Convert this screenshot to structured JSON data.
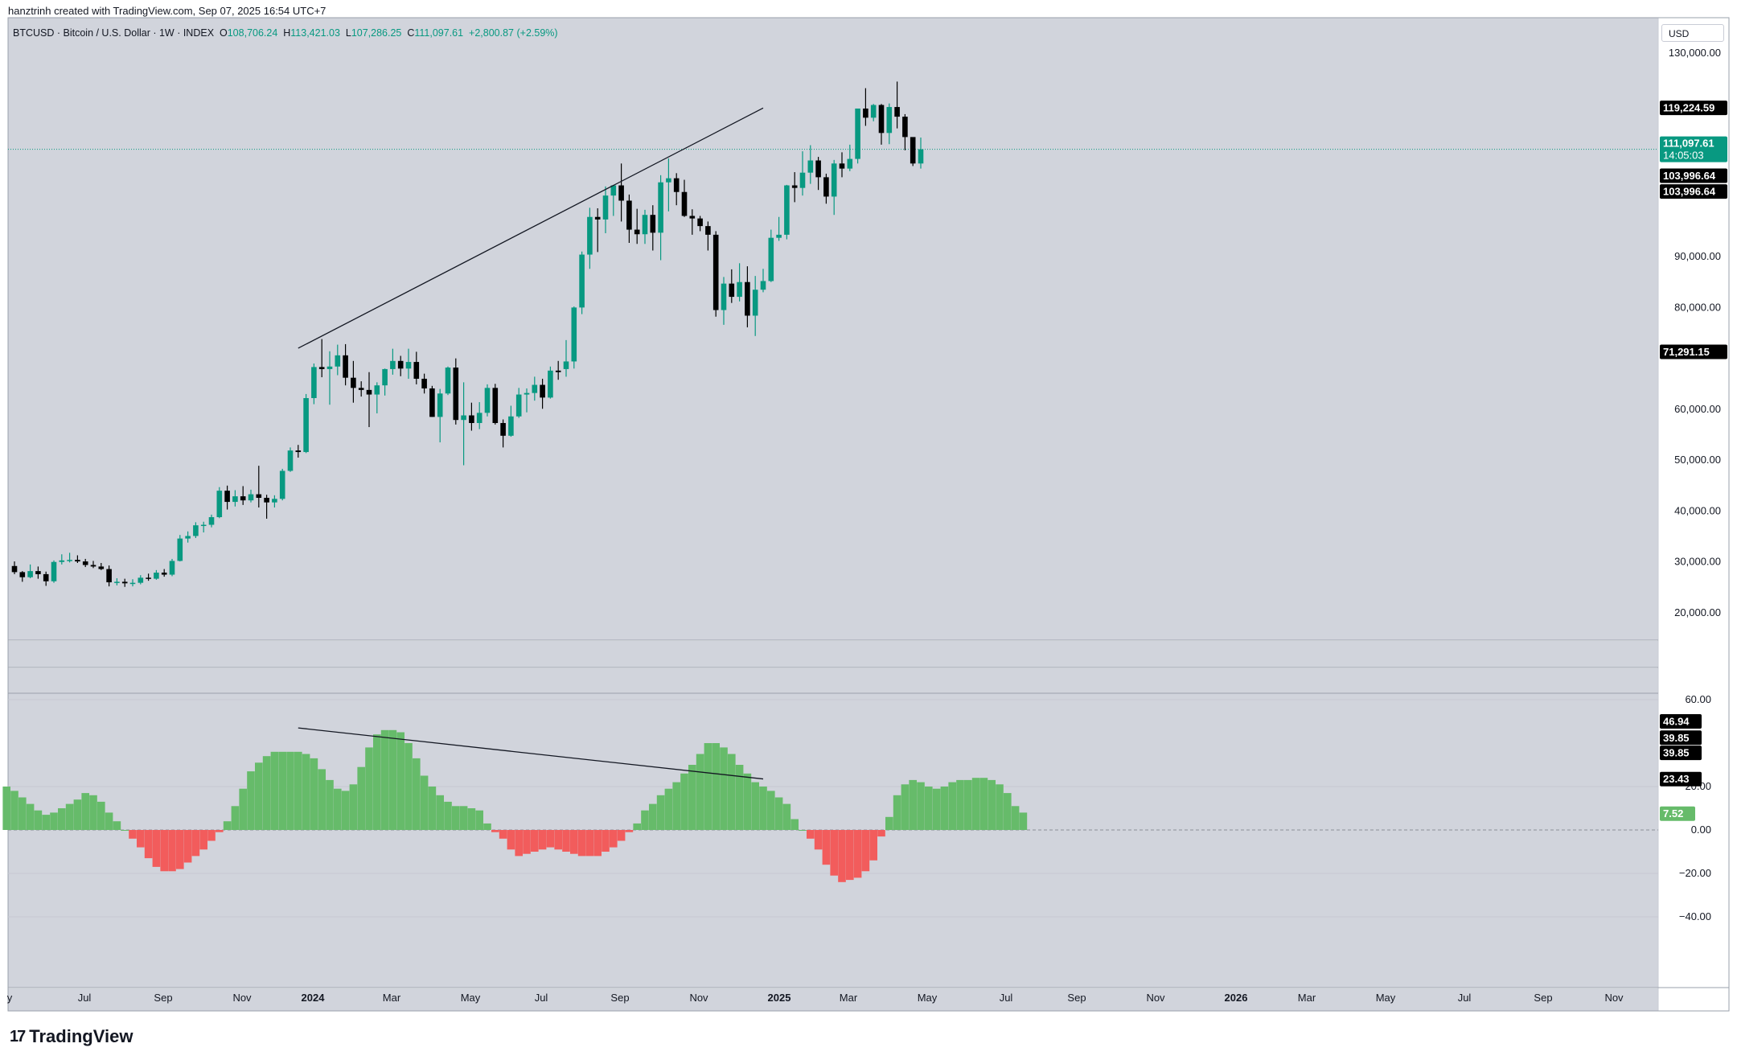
{
  "header": {
    "attribution": "hanztrinh created with TradingView.com, Sep 07, 2025 16:54 UTC+7",
    "symbol": "BTCUSD · Bitcoin / U.S. Dollar · 1W · INDEX",
    "open_label": "O",
    "open": "108,706.24",
    "high_label": "H",
    "high": "113,421.03",
    "low_label": "L",
    "low": "107,286.25",
    "close_label": "C",
    "close": "111,097.61",
    "change": "+2,800.87 (+2.59%)"
  },
  "currency_button": "USD",
  "branding": {
    "logo_text": "TradingView",
    "logo_mark": "17"
  },
  "colors": {
    "up": "#089981",
    "down": "#000000",
    "hist_pos": "#66bb6a",
    "hist_neg": "#f25c5c",
    "background": "#d1d4dc",
    "trendline": "#131722"
  },
  "chart_data": [
    {
      "type": "candlestick",
      "symbol": "BTCUSD",
      "timeframe": "1W",
      "ylim": [
        12000,
        140000
      ],
      "y_ticks": [
        "130,000.00",
        "90,000.00",
        "80,000.00",
        "60,000.00",
        "50,000.00",
        "40,000.00",
        "30,000.00",
        "20,000.00"
      ],
      "price_tags": [
        {
          "label": "119,224.59",
          "value": 119224.59,
          "style": "black"
        },
        {
          "label": "111,097.61",
          "sub": "14:05:03",
          "value": 111097.61,
          "style": "green"
        },
        {
          "label": "103,996.64",
          "value": 105900,
          "style": "black"
        },
        {
          "label": "103,996.64",
          "value": 102800,
          "style": "black"
        },
        {
          "label": "71,291.15",
          "value": 71291.15,
          "style": "black"
        }
      ],
      "last_price": 111097.61,
      "candles": [
        [
          29200,
          30100,
          27600,
          28000
        ],
        [
          28000,
          28200,
          26100,
          27000
        ],
        [
          27000,
          29500,
          26800,
          28200
        ],
        [
          28200,
          29100,
          26700,
          27600
        ],
        [
          27600,
          28100,
          25300,
          26200
        ],
        [
          26200,
          30300,
          25900,
          30000
        ],
        [
          30000,
          31500,
          29500,
          30300
        ],
        [
          30300,
          31800,
          29900,
          30400
        ],
        [
          30400,
          31300,
          29800,
          30100
        ],
        [
          30100,
          30600,
          29000,
          29400
        ],
        [
          29400,
          30200,
          28800,
          29100
        ],
        [
          29100,
          29800,
          28400,
          28600
        ],
        [
          28600,
          29300,
          25200,
          26000
        ],
        [
          26000,
          26800,
          25400,
          26100
        ],
        [
          26100,
          26700,
          25100,
          25800
        ],
        [
          25800,
          26600,
          25200,
          25900
        ],
        [
          25900,
          27400,
          25600,
          26900
        ],
        [
          26900,
          27700,
          26300,
          26700
        ],
        [
          26700,
          28400,
          26500,
          27900
        ],
        [
          27900,
          28600,
          27100,
          27500
        ],
        [
          27500,
          30600,
          27200,
          30200
        ],
        [
          30200,
          35300,
          30100,
          34600
        ],
        [
          34600,
          36000,
          33800,
          35100
        ],
        [
          35100,
          37800,
          34700,
          37200
        ],
        [
          37200,
          37900,
          35800,
          37300
        ],
        [
          37300,
          39300,
          36800,
          38800
        ],
        [
          38800,
          44700,
          38600,
          44000
        ],
        [
          44000,
          45000,
          40300,
          41800
        ],
        [
          41800,
          44100,
          40900,
          42900
        ],
        [
          42900,
          44900,
          41200,
          42100
        ],
        [
          42100,
          44200,
          41700,
          43300
        ],
        [
          43300,
          48900,
          40700,
          42600
        ],
        [
          42600,
          43200,
          38500,
          41700
        ],
        [
          41700,
          43100,
          40700,
          42400
        ],
        [
          42400,
          48300,
          42100,
          47900
        ],
        [
          47900,
          52500,
          47700,
          51900
        ],
        [
          51900,
          53000,
          50500,
          51600
        ],
        [
          51600,
          63000,
          51400,
          62200
        ],
        [
          62200,
          69000,
          61000,
          68300
        ],
        [
          68300,
          73800,
          66300,
          67900
        ],
        [
          67900,
          71400,
          60900,
          68400
        ],
        [
          68400,
          72700,
          66700,
          70600
        ],
        [
          70600,
          72800,
          64700,
          66200
        ],
        [
          66200,
          69500,
          61300,
          64200
        ],
        [
          64200,
          65500,
          62500,
          63800
        ],
        [
          63800,
          67300,
          56500,
          62900
        ],
        [
          62900,
          65300,
          59200,
          64700
        ],
        [
          64700,
          68000,
          62700,
          67900
        ],
        [
          67900,
          71900,
          66800,
          69500
        ],
        [
          69500,
          70500,
          66500,
          68000
        ],
        [
          68000,
          71900,
          66000,
          69300
        ],
        [
          69300,
          71300,
          64900,
          66000
        ],
        [
          66000,
          67000,
          63100,
          64100
        ],
        [
          64100,
          64600,
          58500,
          58500
        ],
        [
          58500,
          64000,
          53500,
          63100
        ],
        [
          63100,
          68400,
          62800,
          68200
        ],
        [
          68200,
          70000,
          57000,
          57900
        ],
        [
          57900,
          65300,
          49000,
          58800
        ],
        [
          58800,
          61300,
          55800,
          57300
        ],
        [
          57300,
          61400,
          56100,
          59300
        ],
        [
          59300,
          64900,
          58600,
          64200
        ],
        [
          64200,
          65000,
          57000,
          57300
        ],
        [
          57300,
          58000,
          52500,
          54800
        ],
        [
          54800,
          60700,
          54600,
          58600
        ],
        [
          58600,
          64200,
          58300,
          62900
        ],
        [
          62900,
          64100,
          59400,
          63200
        ],
        [
          63200,
          66400,
          61700,
          64800
        ],
        [
          64800,
          66000,
          60100,
          62300
        ],
        [
          62300,
          68400,
          62100,
          67600
        ],
        [
          67600,
          69500,
          65800,
          67300
        ],
        [
          67900,
          73600,
          66400,
          69400
        ],
        [
          69400,
          80200,
          68000,
          80000
        ],
        [
          80000,
          91000,
          78700,
          90400
        ],
        [
          90400,
          99600,
          87600,
          97800
        ],
        [
          97800,
          99500,
          90900,
          97300
        ],
        [
          97300,
          103800,
          94600,
          102000
        ],
        [
          102000,
          104100,
          98000,
          104000
        ],
        [
          104000,
          108300,
          96900,
          101000
        ],
        [
          101000,
          102200,
          92700,
          95300
        ],
        [
          95300,
          99400,
          92500,
          94400
        ],
        [
          94400,
          99200,
          92500,
          98200
        ],
        [
          98200,
          100100,
          91200,
          94700
        ],
        [
          94700,
          106000,
          89300,
          104600
        ],
        [
          104600,
          109300,
          98900,
          105400
        ],
        [
          105400,
          106400,
          100100,
          102700
        ],
        [
          102700,
          105100,
          97800,
          98000
        ],
        [
          98000,
          99300,
          94300,
          97500
        ],
        [
          97500,
          98000,
          95000,
          96000
        ],
        [
          96000,
          96900,
          91200,
          94300
        ],
        [
          94300,
          95000,
          78200,
          79500
        ],
        [
          79500,
          86000,
          76600,
          84700
        ],
        [
          84700,
          87500,
          80900,
          82100
        ],
        [
          82100,
          88700,
          81200,
          85000
        ],
        [
          85000,
          88100,
          76100,
          78400
        ],
        [
          78400,
          86200,
          74400,
          83500
        ],
        [
          83500,
          87600,
          83000,
          85200
        ],
        [
          85200,
          95300,
          85000,
          93700
        ],
        [
          93700,
          97800,
          93100,
          94300
        ],
        [
          94300,
          104100,
          93400,
          104000
        ],
        [
          104000,
          106600,
          100700,
          103500
        ],
        [
          103500,
          110700,
          102000,
          106500
        ],
        [
          106500,
          111900,
          104300,
          108900
        ],
        [
          108900,
          109600,
          103100,
          105600
        ],
        [
          105600,
          106300,
          100400,
          101800
        ],
        [
          101800,
          109000,
          98200,
          108300
        ],
        [
          108300,
          110500,
          105600,
          107300
        ],
        [
          107300,
          112000,
          106800,
          109200
        ],
        [
          109200,
          119000,
          108300,
          119100
        ],
        [
          119100,
          123100,
          115700,
          117300
        ],
        [
          117300,
          120000,
          116600,
          119800
        ],
        [
          119800,
          120000,
          112000,
          114300
        ],
        [
          114300,
          120100,
          112100,
          119400
        ],
        [
          119400,
          124400,
          115200,
          117500
        ],
        [
          117500,
          118000,
          110900,
          113500
        ],
        [
          113500,
          113400,
          107800,
          108300
        ],
        [
          108300,
          113400,
          107300,
          111100
        ]
      ],
      "annotations": [
        {
          "type": "trendline",
          "from": {
            "week": 36,
            "price": 72000
          },
          "to": {
            "week": 95,
            "price": 119200
          }
        }
      ]
    },
    {
      "type": "bar",
      "name": "oscillator histogram",
      "ylim": [
        -60,
        60
      ],
      "y_ticks": [
        "60.00",
        "20.00",
        "0.00",
        "−20.00",
        "−40.00"
      ],
      "value_tags": [
        {
          "label": "46.94",
          "value": 50,
          "style": "black"
        },
        {
          "label": "39.85",
          "value": 42.5,
          "style": "black"
        },
        {
          "label": "39.85",
          "value": 35.5,
          "style": "black"
        },
        {
          "label": "23.43",
          "value": 23.43,
          "style": "black"
        },
        {
          "label": "7.52",
          "value": 7.52,
          "style": "green"
        }
      ],
      "values": [
        20,
        18,
        15,
        12,
        9,
        7,
        8,
        10,
        12,
        14,
        17,
        16,
        13,
        8,
        4,
        0,
        -4,
        -8,
        -13,
        -17,
        -19,
        -19,
        -18,
        -15,
        -12,
        -9,
        -5,
        -1,
        4,
        11,
        19,
        27,
        31,
        34,
        36,
        36,
        36,
        36,
        35,
        33,
        28,
        23,
        19,
        18,
        21,
        29,
        38,
        44,
        46,
        46,
        45,
        40,
        33,
        25,
        20,
        16,
        13,
        11,
        11,
        10,
        9,
        3,
        -1,
        -4,
        -9,
        -12,
        -11,
        -10,
        -9,
        -8,
        -9,
        -10,
        -11,
        -12,
        -12,
        -12,
        -10,
        -8,
        -5,
        -1,
        3,
        9,
        12,
        16,
        19,
        22,
        26,
        30,
        35,
        40,
        40,
        38,
        35,
        30,
        26,
        22,
        20,
        18,
        15,
        12,
        5,
        0,
        -4,
        -9,
        -16,
        -21,
        -24,
        -23,
        -22,
        -19,
        -14,
        -3,
        6,
        16,
        21,
        23,
        22,
        20,
        19,
        20,
        22,
        23,
        23,
        24,
        24,
        23,
        21,
        17,
        11,
        8
      ],
      "annotations": [
        {
          "type": "trendline",
          "from": {
            "week": 36,
            "value": 47
          },
          "to": {
            "week": 95,
            "value": 23.5
          }
        }
      ]
    }
  ],
  "x_axis_labels": [
    "y",
    "Jul",
    "Sep",
    "Nov",
    "2024",
    "Mar",
    "May",
    "Jul",
    "Sep",
    "Nov",
    "2025",
    "Mar",
    "May",
    "Jul",
    "Sep",
    "Nov",
    "2026",
    "Mar",
    "May",
    "Jul",
    "Sep",
    "Nov"
  ]
}
